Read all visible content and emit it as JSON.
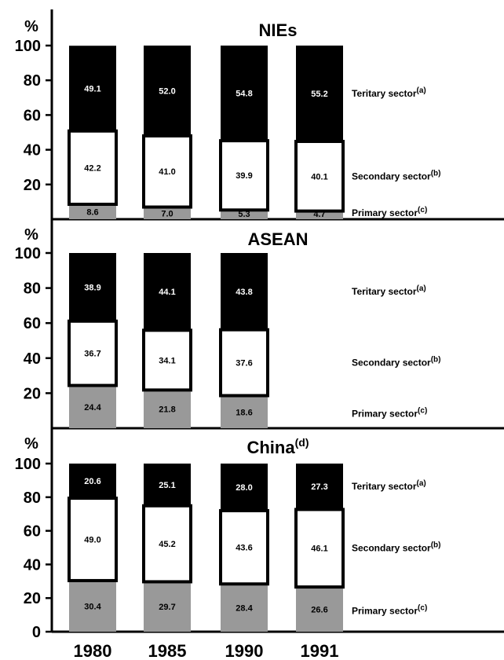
{
  "chart_data": [
    {
      "type": "bar",
      "stacked": true,
      "title": "NIEs",
      "title_sup": "",
      "ylabel": "%",
      "ylim": [
        0,
        100
      ],
      "yticks": [
        "20",
        "40",
        "60",
        "80",
        "100"
      ],
      "categories": [
        "1980",
        "1985",
        "1990",
        "1991"
      ],
      "series": [
        {
          "name": "Primary sector",
          "sup": "(c)",
          "color": "#999999",
          "text_color": "#000000",
          "values": [
            8.6,
            7.0,
            5.3,
            4.7
          ],
          "labels": [
            "8.6",
            "7.0",
            "5.3",
            "4.7"
          ]
        },
        {
          "name": "Secondary sector",
          "sup": "(b)",
          "color": "#ffffff",
          "text_color": "#000000",
          "values": [
            42.2,
            41.0,
            39.9,
            40.1
          ],
          "labels": [
            "42.2",
            "41.0",
            "39.9",
            "40.1"
          ]
        },
        {
          "name": "Teritary sector",
          "sup": "(a)",
          "color": "#000000",
          "text_color": "#ffffff",
          "values": [
            49.1,
            52.0,
            54.8,
            55.2
          ],
          "labels": [
            "49.1",
            "52.0",
            "54.8",
            "55.2"
          ]
        }
      ]
    },
    {
      "type": "bar",
      "stacked": true,
      "title": "ASEAN",
      "title_sup": "",
      "ylabel": "%",
      "ylim": [
        0,
        100
      ],
      "yticks": [
        "20",
        "40",
        "60",
        "80",
        "100"
      ],
      "categories": [
        "1980",
        "1985",
        "1990"
      ],
      "series": [
        {
          "name": "Primary sector",
          "sup": "(c)",
          "color": "#999999",
          "text_color": "#000000",
          "values": [
            24.4,
            21.8,
            18.6
          ],
          "labels": [
            "24.4",
            "21.8",
            "18.6"
          ]
        },
        {
          "name": "Secondary sector",
          "sup": "(b)",
          "color": "#ffffff",
          "text_color": "#000000",
          "values": [
            36.7,
            34.1,
            37.6
          ],
          "labels": [
            "36.7",
            "34.1",
            "37.6"
          ]
        },
        {
          "name": "Teritary sector",
          "sup": "(a)",
          "color": "#000000",
          "text_color": "#ffffff",
          "values": [
            38.9,
            44.1,
            43.8
          ],
          "labels": [
            "38.9",
            "44.1",
            "43.8"
          ]
        }
      ]
    },
    {
      "type": "bar",
      "stacked": true,
      "title": "China",
      "title_sup": "(d)",
      "ylabel": "%",
      "ylim": [
        0,
        100
      ],
      "yticks": [
        "0",
        "20",
        "40",
        "60",
        "80",
        "100"
      ],
      "categories": [
        "1980",
        "1985",
        "1990",
        "1991"
      ],
      "series": [
        {
          "name": "Primary sector",
          "sup": "(c)",
          "color": "#999999",
          "text_color": "#000000",
          "values": [
            30.4,
            29.7,
            28.4,
            26.6
          ],
          "labels": [
            "30.4",
            "29.7",
            "28.4",
            "26.6"
          ]
        },
        {
          "name": "Secondary sector",
          "sup": "(b)",
          "color": "#ffffff",
          "text_color": "#000000",
          "values": [
            49.0,
            45.2,
            43.6,
            46.1
          ],
          "labels": [
            "49.0",
            "45.2",
            "43.6",
            "46.1"
          ]
        },
        {
          "name": "Teritary sector",
          "sup": "(a)",
          "color": "#000000",
          "text_color": "#ffffff",
          "values": [
            20.6,
            25.1,
            28.0,
            27.3
          ],
          "labels": [
            "20.6",
            "25.1",
            "28.0",
            "27.3"
          ]
        }
      ]
    }
  ],
  "x_labels": [
    "1980",
    "1985",
    "1990",
    "1991"
  ]
}
